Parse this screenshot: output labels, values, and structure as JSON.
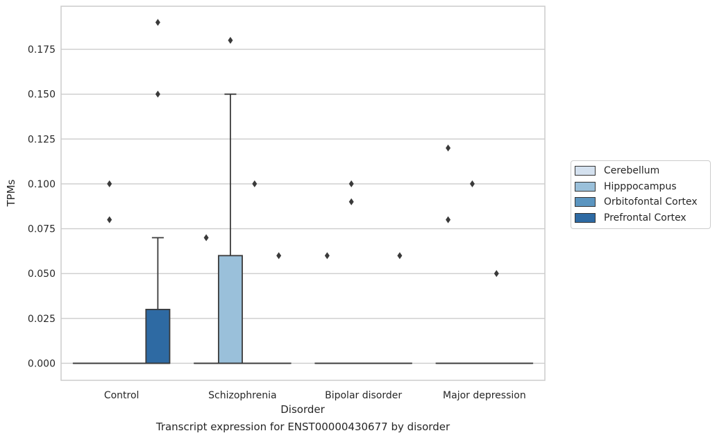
{
  "caption": "Transcript expression for ENST00000430677 by disorder",
  "chart_data": {
    "type": "box",
    "xlabel": "Disorder",
    "ylabel": "TPMs",
    "categories": [
      "Control",
      "Schizophrenia",
      "Bipolar disorder",
      "Major depression"
    ],
    "ylim": [
      -0.0095,
      0.199
    ],
    "yticks": [
      "0.000",
      "0.025",
      "0.050",
      "0.075",
      "0.100",
      "0.125",
      "0.150",
      "0.175"
    ],
    "grid": "horizontal",
    "legend_position": "right",
    "series": [
      {
        "name": "Cerebellum",
        "color": "#d4e1ef",
        "boxes": [
          {
            "q1": 0,
            "median": 0,
            "q3": 0,
            "whisker_low": 0,
            "whisker_high": 0,
            "outliers": []
          },
          {
            "q1": 0,
            "median": 0,
            "q3": 0,
            "whisker_low": 0,
            "whisker_high": 0,
            "outliers": [
              0.07
            ]
          },
          {
            "q1": 0,
            "median": 0,
            "q3": 0,
            "whisker_low": 0,
            "whisker_high": 0,
            "outliers": [
              0.06
            ]
          },
          {
            "q1": 0,
            "median": 0,
            "q3": 0,
            "whisker_low": 0,
            "whisker_high": 0,
            "outliers": [
              0.12,
              0.08
            ]
          }
        ]
      },
      {
        "name": "Hipppocampus",
        "color": "#9ac0da",
        "boxes": [
          {
            "q1": 0,
            "median": 0,
            "q3": 0,
            "whisker_low": 0,
            "whisker_high": 0,
            "outliers": [
              0.1,
              0.08
            ]
          },
          {
            "q1": 0,
            "median": 0,
            "q3": 0.06,
            "whisker_low": 0,
            "whisker_high": 0.15,
            "outliers": [
              0.18
            ]
          },
          {
            "q1": 0,
            "median": 0,
            "q3": 0,
            "whisker_low": 0,
            "whisker_high": 0,
            "outliers": [
              0.1,
              0.09
            ]
          },
          {
            "q1": 0,
            "median": 0,
            "q3": 0,
            "whisker_low": 0,
            "whisker_high": 0,
            "outliers": [
              0.1
            ]
          }
        ]
      },
      {
        "name": "Orbitofontal Cortex",
        "color": "#5b95c0",
        "boxes": [
          {
            "q1": 0,
            "median": 0,
            "q3": 0,
            "whisker_low": 0,
            "whisker_high": 0,
            "outliers": []
          },
          {
            "q1": 0,
            "median": 0,
            "q3": 0,
            "whisker_low": 0,
            "whisker_high": 0,
            "outliers": [
              0.1
            ]
          },
          {
            "q1": 0,
            "median": 0,
            "q3": 0,
            "whisker_low": 0,
            "whisker_high": 0,
            "outliers": []
          },
          {
            "q1": 0,
            "median": 0,
            "q3": 0,
            "whisker_low": 0,
            "whisker_high": 0,
            "outliers": [
              0.05
            ]
          }
        ]
      },
      {
        "name": "Prefrontal Cortex",
        "color": "#2e6aa3",
        "boxes": [
          {
            "q1": 0,
            "median": 0,
            "q3": 0.03,
            "whisker_low": 0,
            "whisker_high": 0.07,
            "outliers": [
              0.19,
              0.15
            ]
          },
          {
            "q1": 0,
            "median": 0,
            "q3": 0,
            "whisker_low": 0,
            "whisker_high": 0,
            "outliers": [
              0.06
            ]
          },
          {
            "q1": 0,
            "median": 0,
            "q3": 0,
            "whisker_low": 0,
            "whisker_high": 0,
            "outliers": [
              0.06
            ]
          },
          {
            "q1": 0,
            "median": 0,
            "q3": 0,
            "whisker_low": 0,
            "whisker_high": 0,
            "outliers": []
          }
        ]
      }
    ]
  }
}
